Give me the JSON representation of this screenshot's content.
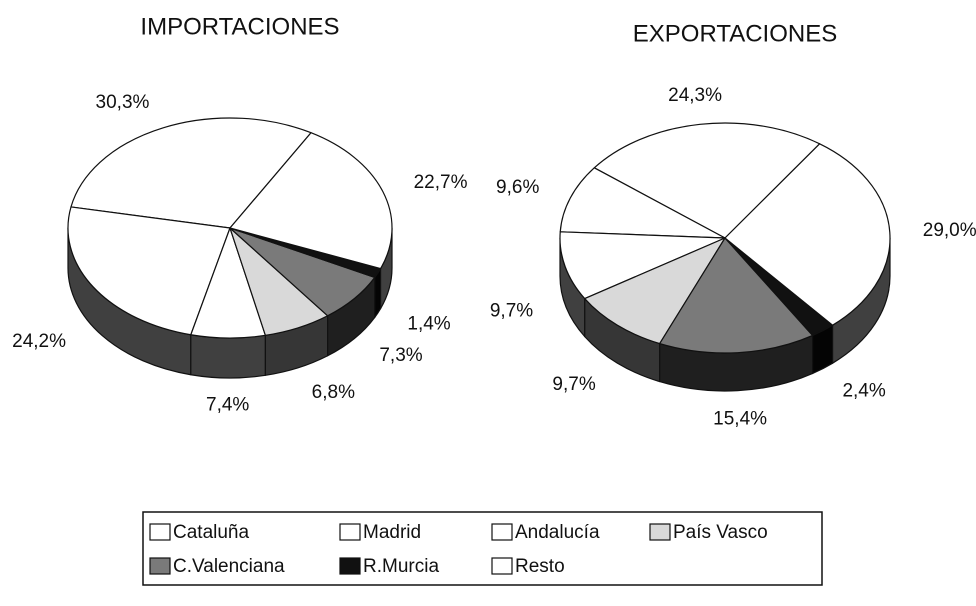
{
  "chart_data": [
    {
      "type": "pie",
      "title": "IMPORTACIONES",
      "categories": [
        "Cataluña",
        "Madrid",
        "Andalucía",
        "País Vasco",
        "C.Valenciana",
        "R.Murcia",
        "Resto"
      ],
      "values": [
        30.3,
        24.2,
        7.4,
        6.8,
        7.3,
        1.4,
        22.7
      ],
      "value_labels": [
        "30,3%",
        "24,2%",
        "7,4%",
        "6,8%",
        "7,3%",
        "1,4%",
        "22,7%"
      ],
      "colors": [
        "#ffffff",
        "#ffffff",
        "#ffffff",
        "#d9d9d9",
        "#7a7a7a",
        "#111111",
        "#ffffff"
      ]
    },
    {
      "type": "pie",
      "title": "EXPORTACIONES",
      "categories": [
        "Cataluña",
        "Madrid",
        "Andalucía",
        "País Vasco",
        "C.Valenciana",
        "R.Murcia",
        "Resto"
      ],
      "values": [
        24.3,
        9.6,
        9.7,
        9.7,
        15.4,
        2.4,
        29.0
      ],
      "value_labels": [
        "24,3%",
        "9,6%",
        "9,7%",
        "9,7%",
        "15,4%",
        "2,4%",
        "29,0%"
      ],
      "colors": [
        "#ffffff",
        "#ffffff",
        "#ffffff",
        "#d9d9d9",
        "#7a7a7a",
        "#111111",
        "#ffffff"
      ]
    }
  ]
}
